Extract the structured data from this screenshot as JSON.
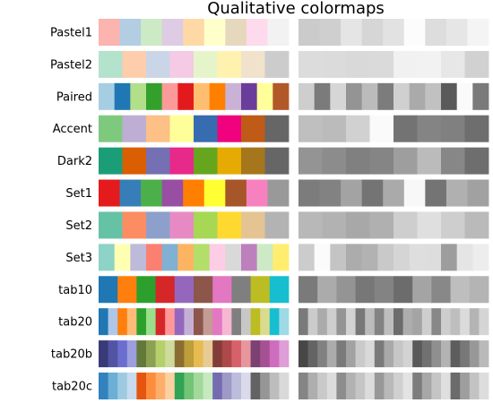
{
  "chart_data": {
    "type": "heatmap",
    "title": "Qualitative colormaps",
    "xlabel": "",
    "ylabel": "",
    "grid": false,
    "panels": [
      "color",
      "grayscale"
    ],
    "colormaps": [
      {
        "name": "Pastel1",
        "colors": [
          "#fbb4ae",
          "#b3cde3",
          "#ccebc5",
          "#decbe4",
          "#fed9a6",
          "#ffffcc",
          "#e5d8bd",
          "#fddaec",
          "#f2f2f2"
        ]
      },
      {
        "name": "Pastel2",
        "colors": [
          "#b3e2cd",
          "#fdcdac",
          "#cbd5e8",
          "#f4cae4",
          "#e6f5c9",
          "#fff2ae",
          "#f1e2cc",
          "#cccccc"
        ]
      },
      {
        "name": "Paired",
        "colors": [
          "#a6cee3",
          "#1f78b4",
          "#b2df8a",
          "#33a02c",
          "#fb9a99",
          "#e31a1c",
          "#fdbf6f",
          "#ff7f00",
          "#cab2d6",
          "#6a3d9a",
          "#ffff99",
          "#b15928"
        ]
      },
      {
        "name": "Accent",
        "colors": [
          "#7fc97f",
          "#beaed4",
          "#fdc086",
          "#ffff99",
          "#386cb0",
          "#f0027f",
          "#bf5b17",
          "#666666"
        ]
      },
      {
        "name": "Dark2",
        "colors": [
          "#1b9e77",
          "#d95f02",
          "#7570b3",
          "#e7298a",
          "#66a61e",
          "#e6ab02",
          "#a6761d",
          "#666666"
        ]
      },
      {
        "name": "Set1",
        "colors": [
          "#e41a1c",
          "#377eb8",
          "#4daf4a",
          "#984ea3",
          "#ff7f00",
          "#ffff33",
          "#a65628",
          "#f781bf",
          "#999999"
        ]
      },
      {
        "name": "Set2",
        "colors": [
          "#66c2a5",
          "#fc8d62",
          "#8da0cb",
          "#e78ac3",
          "#a6d854",
          "#ffd92f",
          "#e5c494",
          "#b3b3b3"
        ]
      },
      {
        "name": "Set3",
        "colors": [
          "#8dd3c7",
          "#ffffb3",
          "#bebada",
          "#fb8072",
          "#80b1d3",
          "#fdb462",
          "#b3de69",
          "#fccde5",
          "#d9d9d9",
          "#bc80bd",
          "#ccebc5",
          "#ffed6f"
        ]
      },
      {
        "name": "tab10",
        "colors": [
          "#1f77b4",
          "#ff7f0e",
          "#2ca02c",
          "#d62728",
          "#9467bd",
          "#8c564b",
          "#e377c2",
          "#7f7f7f",
          "#bcbd22",
          "#17becf"
        ]
      },
      {
        "name": "tab20",
        "colors": [
          "#1f77b4",
          "#aec7e8",
          "#ff7f0e",
          "#ffbb78",
          "#2ca02c",
          "#98df8a",
          "#d62728",
          "#ff9896",
          "#9467bd",
          "#c5b0d5",
          "#8c564b",
          "#c49c94",
          "#e377c2",
          "#f7b6d2",
          "#7f7f7f",
          "#c7c7c7",
          "#bcbd22",
          "#dbdb8d",
          "#17becf",
          "#9edae5"
        ]
      },
      {
        "name": "tab20b",
        "colors": [
          "#393b79",
          "#5254a3",
          "#6b6ecf",
          "#9c9ede",
          "#637939",
          "#8ca252",
          "#b5cf6b",
          "#cedb9c",
          "#8c6d31",
          "#bd9e39",
          "#e7ba52",
          "#e7cb94",
          "#843c39",
          "#ad494a",
          "#d6616b",
          "#e7969c",
          "#7b4173",
          "#a55194",
          "#ce6dbd",
          "#de9ed6"
        ]
      },
      {
        "name": "tab20c",
        "colors": [
          "#3182bd",
          "#6baed6",
          "#9ecae1",
          "#c6dbef",
          "#e6550d",
          "#fd8d3c",
          "#fdae6b",
          "#fdd0a2",
          "#31a354",
          "#74c476",
          "#a1d99b",
          "#c7e9c0",
          "#756bb1",
          "#9e9ac8",
          "#bcbddc",
          "#dadaeb",
          "#636363",
          "#969696",
          "#bdbdbd",
          "#d9d9d9"
        ]
      }
    ]
  }
}
